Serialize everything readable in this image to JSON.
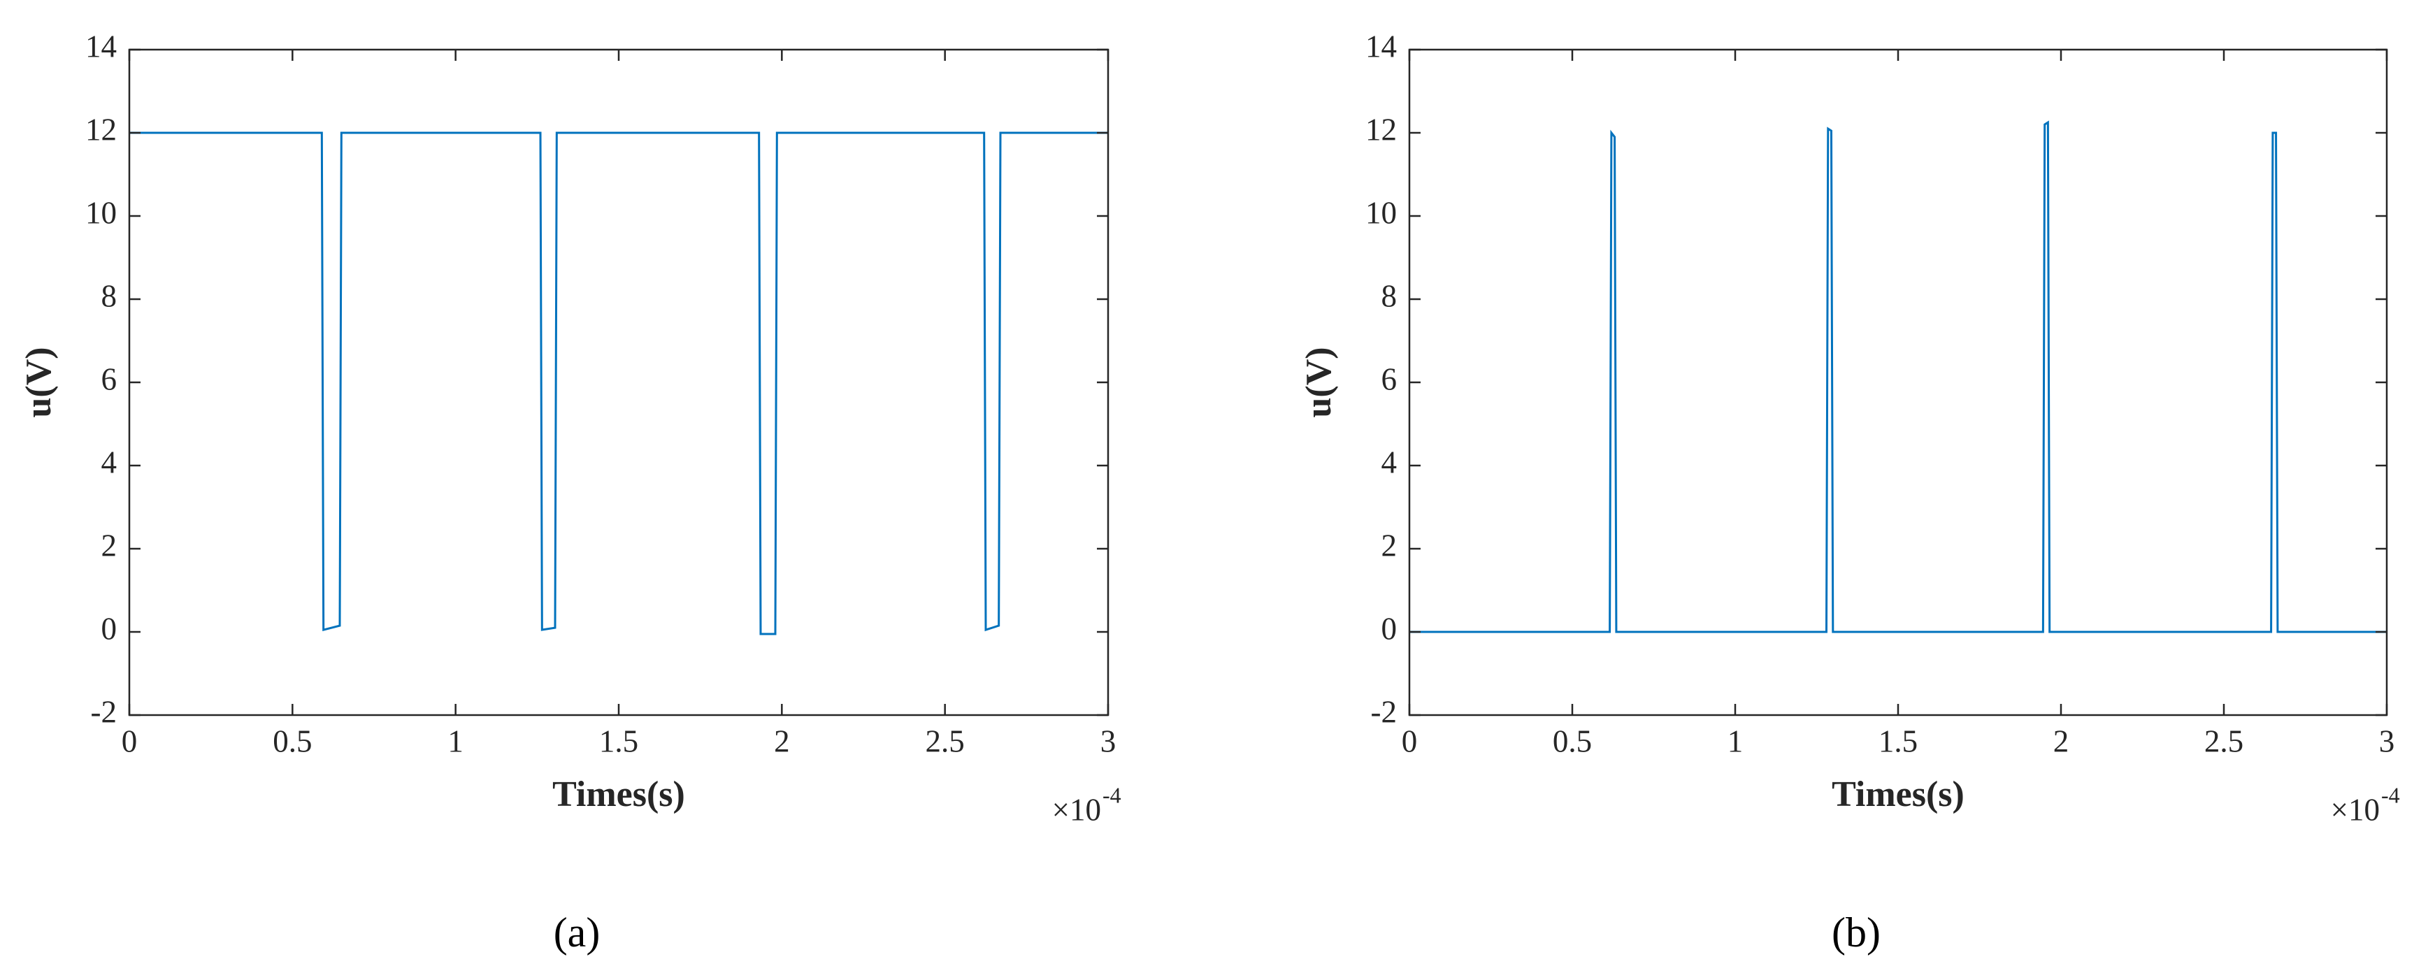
{
  "chart_data": [
    {
      "type": "line",
      "xlabel": "Times(s)",
      "ylabel": "u(V)",
      "x_multiplier": "×10",
      "x_exponent": "-4",
      "caption": "(a)",
      "color": "#0072bd",
      "grid": false,
      "x": [
        0,
        0.59,
        0.595,
        0.645,
        0.65,
        1.26,
        1.265,
        1.305,
        1.31,
        1.93,
        1.935,
        1.98,
        1.985,
        2.62,
        2.625,
        2.665,
        2.67,
        3
      ],
      "values": [
        12,
        12,
        0.05,
        0.15,
        12,
        12,
        0.05,
        0.1,
        12,
        12,
        -0.05,
        -0.05,
        12,
        12,
        0.05,
        0.15,
        12,
        12
      ],
      "xlim": [
        0,
        3
      ],
      "xticks": [
        0,
        0.5,
        1,
        1.5,
        2,
        2.5,
        3
      ],
      "ylim": [
        -2,
        14
      ],
      "yticks": [
        -2,
        0,
        2,
        4,
        6,
        8,
        10,
        12,
        14
      ]
    },
    {
      "type": "line",
      "xlabel": "Times(s)",
      "ylabel": "u(V)",
      "x_multiplier": "×10",
      "x_exponent": "-4",
      "caption": "(b)",
      "color": "#0072bd",
      "grid": false,
      "x": [
        0,
        0.615,
        0.62,
        0.63,
        0.635,
        1.28,
        1.285,
        1.295,
        1.3,
        1.945,
        1.95,
        1.96,
        1.965,
        2.645,
        2.65,
        2.66,
        2.665,
        3
      ],
      "values": [
        0,
        0,
        12,
        11.9,
        0,
        0,
        12.1,
        12.05,
        0,
        0,
        12.2,
        12.25,
        0,
        0,
        12,
        12,
        0,
        0
      ],
      "xlim": [
        0,
        3
      ],
      "xticks": [
        0,
        0.5,
        1,
        1.5,
        2,
        2.5,
        3
      ],
      "ylim": [
        -2,
        14
      ],
      "yticks": [
        -2,
        0,
        2,
        4,
        6,
        8,
        10,
        12,
        14
      ]
    }
  ]
}
